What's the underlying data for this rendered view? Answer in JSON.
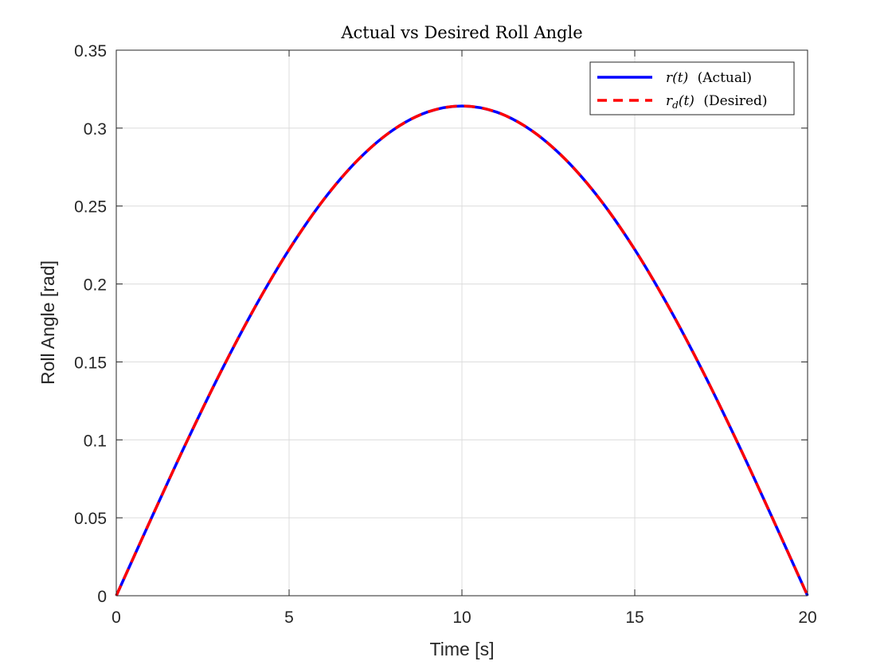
{
  "chart_data": {
    "type": "line",
    "title": "Actual vs Desired Roll Angle",
    "xlabel": "Time [s]",
    "ylabel": "Roll Angle [rad]",
    "xlim": [
      0,
      20
    ],
    "ylim": [
      0,
      0.35
    ],
    "xticks": [
      0,
      5,
      10,
      15,
      20
    ],
    "xtick_labels": [
      "0",
      "5",
      "10",
      "15",
      "20"
    ],
    "yticks": [
      0,
      0.05,
      0.1,
      0.15,
      0.2,
      0.25,
      0.3,
      0.35
    ],
    "ytick_labels": [
      "0",
      "0.05",
      "0.1",
      "0.15",
      "0.2",
      "0.25",
      "0.3",
      "0.35"
    ],
    "grid": true,
    "legend_position": "top-right",
    "series": [
      {
        "name": "r(t) (Actual)",
        "legend_italic": "r(t)",
        "legend_plain": "(Actual)",
        "color": "#0000ff",
        "style": "solid",
        "x": [
          0,
          1,
          2,
          3,
          4,
          5,
          6,
          7,
          8,
          9,
          10,
          11,
          12,
          13,
          14,
          15,
          16,
          17,
          18,
          19,
          20
        ],
        "y": [
          0,
          0.049,
          0.097,
          0.1426,
          0.1846,
          0.2221,
          0.2541,
          0.2798,
          0.2987,
          0.3103,
          0.3142,
          0.3103,
          0.2987,
          0.2798,
          0.2541,
          0.2221,
          0.1846,
          0.1426,
          0.097,
          0.049,
          0
        ]
      },
      {
        "name": "r_d(t) (Desired)",
        "legend_italic": "r",
        "legend_sub": "d",
        "legend_italic2": "(t)",
        "legend_plain": "(Desired)",
        "color": "#ff0000",
        "style": "dashed",
        "x": [
          0,
          1,
          2,
          3,
          4,
          5,
          6,
          7,
          8,
          9,
          10,
          11,
          12,
          13,
          14,
          15,
          16,
          17,
          18,
          19,
          20
        ],
        "y": [
          0,
          0.049,
          0.097,
          0.1426,
          0.1846,
          0.2221,
          0.2541,
          0.2798,
          0.2987,
          0.3103,
          0.3142,
          0.3103,
          0.2987,
          0.2798,
          0.2541,
          0.2221,
          0.1846,
          0.1426,
          0.097,
          0.049,
          0
        ]
      }
    ]
  }
}
